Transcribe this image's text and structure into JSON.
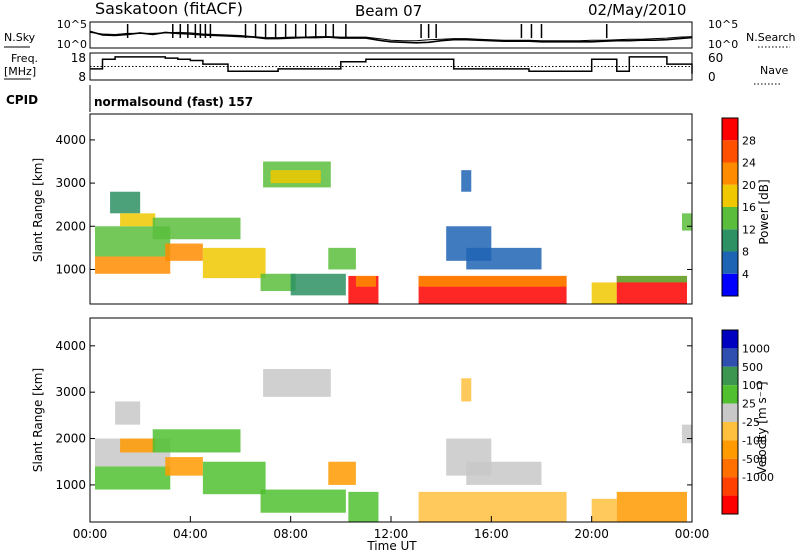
{
  "header": {
    "station": "Saskatoon (fitACF)",
    "beam": "Beam 07",
    "date": "02/May/2010"
  },
  "noise_panel": {
    "left_label": "N.Sky",
    "right_label": "N.Search",
    "left_ticks": [
      "10^5",
      "10^0"
    ],
    "right_ticks": [
      "10^5",
      "10^0"
    ]
  },
  "freq_panel": {
    "left_label_1": "Freq.",
    "left_label_2": "[MHz]",
    "right_label": "Nave",
    "left_ticks": [
      "18",
      "8"
    ],
    "right_ticks": [
      "60",
      "0"
    ]
  },
  "cpid": {
    "label": "CPID",
    "value": "normalsound (fast) 157"
  },
  "colors": {
    "power_scale": [
      "#0000ff",
      "#1e64b4",
      "#2d9164",
      "#5abe3c",
      "#f0c800",
      "#ff8c00",
      "#ff5000",
      "#ff0000"
    ],
    "velocity_scale": [
      "#ff0000",
      "#ff4000",
      "#ff7000",
      "#ff9a00",
      "#ffc040",
      "#c8c8c8",
      "#50c030",
      "#3c9650",
      "#3050b0",
      "#0000c0"
    ]
  },
  "chart_data": [
    {
      "type": "line",
      "name": "noise",
      "x": [
        0,
        0.5,
        1,
        1.5,
        2,
        2.5,
        3,
        3.5,
        4,
        4.5,
        5,
        5.5,
        6,
        6.5,
        7,
        7.5,
        8,
        8.5,
        9,
        9.5,
        10,
        10.5,
        11,
        11.5,
        12,
        12.5,
        13,
        13.5,
        14,
        14.5,
        15,
        15.5,
        16,
        16.5,
        17,
        17.5,
        18,
        18.5,
        19,
        19.5,
        20,
        20.5,
        21,
        21.5,
        22,
        22.5,
        23,
        23.5,
        24
      ],
      "series": [
        {
          "values": [
            3.2,
            2.5,
            2.4,
            2.6,
            2.9,
            2.6,
            3.0,
            2.8,
            2.7,
            2.5,
            2.4,
            2.3,
            2.2,
            2.1,
            1.8,
            1.8,
            1.9,
            2.0,
            2.0,
            2.1,
            1.9,
            1.9,
            1.9,
            1.5,
            1.2,
            1.1,
            1.0,
            1.1,
            1.4,
            1.6,
            1.6,
            1.5,
            1.4,
            1.3,
            1.3,
            1.3,
            1.2,
            1.2,
            1.2,
            1.2,
            1.2,
            1.3,
            1.4,
            1.4,
            1.5,
            1.5,
            1.6,
            1.8,
            2.0
          ]
        },
        {
          "values": [
            3.0,
            2.7,
            2.6,
            2.8,
            2.8,
            2.8,
            2.9,
            3.0,
            2.9,
            2.7,
            2.6,
            2.5,
            2.4,
            2.2,
            2.0,
            2.0,
            2.1,
            2.1,
            2.2,
            2.2,
            2.1,
            2.1,
            2.1,
            1.8,
            1.5,
            1.4,
            1.4,
            1.6,
            1.7,
            1.8,
            1.8,
            1.7,
            1.6,
            1.5,
            1.5,
            1.5,
            1.4,
            1.4,
            1.4,
            1.4,
            1.5,
            1.5,
            1.6,
            1.7,
            1.7,
            1.8,
            1.9,
            2.1,
            2.2
          ]
        }
      ],
      "spikes_x": [
        1.5,
        3.3,
        3.6,
        3.9,
        4.2,
        4.4,
        4.6,
        4.8,
        6.2,
        6.6,
        7.0,
        7.4,
        7.8,
        8.2,
        8.6,
        9.0,
        9.4,
        9.7,
        10.2,
        13.2,
        13.5,
        13.8,
        17.2,
        17.6,
        18.0,
        20.6
      ],
      "ylim": [
        0,
        5
      ]
    },
    {
      "type": "line",
      "name": "frequency",
      "x": [
        0,
        0.5,
        1,
        1.5,
        2,
        2.5,
        3,
        3.5,
        4,
        4.5,
        5,
        5.5,
        6,
        6.5,
        7,
        7.5,
        8,
        8.5,
        9,
        9.5,
        10,
        10.5,
        11,
        11.5,
        12,
        12.5,
        13,
        13.5,
        14,
        14.5,
        15,
        15.5,
        16,
        16.5,
        17,
        17.5,
        18,
        18.5,
        19,
        19.5,
        20,
        20.5,
        21,
        21.5,
        22,
        22.5,
        23,
        23.5,
        24
      ],
      "series": [
        {
          "values": [
            12,
            16,
            17,
            17,
            17,
            17,
            16.5,
            16,
            15.5,
            14,
            14,
            11,
            11,
            11,
            11,
            12,
            12,
            12,
            12,
            12,
            15,
            15,
            16,
            16,
            16,
            16,
            16,
            16,
            16,
            12,
            12,
            12,
            12,
            12,
            12,
            11,
            11,
            11,
            11,
            11,
            16,
            16,
            11,
            17,
            17,
            17,
            14,
            14,
            10
          ]
        },
        {
          "values": [
            13,
            13,
            13,
            13,
            13,
            13,
            13,
            13,
            13,
            13,
            13,
            13,
            13,
            13,
            13,
            13,
            13,
            13,
            13,
            13,
            13,
            13,
            13,
            13,
            13,
            13,
            13,
            13,
            13,
            13,
            13,
            13,
            13,
            13,
            13,
            13,
            13,
            13,
            13,
            13,
            13,
            13,
            13,
            13,
            13,
            13,
            13,
            13,
            13
          ]
        }
      ],
      "ylim": [
        8,
        18
      ]
    },
    {
      "type": "heatmap",
      "name": "power",
      "xlabel": "",
      "ylabel": "Slant Range [km]",
      "xlim": [
        0,
        24
      ],
      "ylim": [
        200,
        4600
      ],
      "yticks": [
        "1000",
        "2000",
        "3000",
        "4000"
      ],
      "colorbar_label": "Power [dB]",
      "colorbar_ticks": [
        "4",
        "8",
        "12",
        "16",
        "20",
        "24",
        "28"
      ],
      "regions": [
        {
          "x0": 0.2,
          "x1": 3.2,
          "y0": 900,
          "y1": 1300,
          "v": 5
        },
        {
          "x0": 0.2,
          "x1": 3.2,
          "y0": 1300,
          "y1": 2000,
          "v": 3
        },
        {
          "x0": 0.8,
          "x1": 2.0,
          "y0": 2300,
          "y1": 2800,
          "v": 2
        },
        {
          "x0": 1.2,
          "x1": 2.6,
          "y0": 2000,
          "y1": 2300,
          "v": 4
        },
        {
          "x0": 2.5,
          "x1": 6.0,
          "y0": 1700,
          "y1": 2200,
          "v": 3
        },
        {
          "x0": 3.0,
          "x1": 4.5,
          "y0": 1200,
          "y1": 1600,
          "v": 5
        },
        {
          "x0": 4.5,
          "x1": 7.0,
          "y0": 800,
          "y1": 1500,
          "v": 4
        },
        {
          "x0": 6.8,
          "x1": 8.2,
          "y0": 500,
          "y1": 900,
          "v": 3
        },
        {
          "x0": 6.9,
          "x1": 9.6,
          "y0": 2900,
          "y1": 3500,
          "v": 3
        },
        {
          "x0": 7.2,
          "x1": 9.2,
          "y0": 3000,
          "y1": 3300,
          "v": 4
        },
        {
          "x0": 8.0,
          "x1": 10.2,
          "y0": 400,
          "y1": 900,
          "v": 2
        },
        {
          "x0": 9.5,
          "x1": 10.6,
          "y0": 1000,
          "y1": 1500,
          "v": 3
        },
        {
          "x0": 10.3,
          "x1": 11.5,
          "y0": 200,
          "y1": 850,
          "v": 7
        },
        {
          "x0": 10.6,
          "x1": 11.4,
          "y0": 600,
          "y1": 850,
          "v": 5
        },
        {
          "x0": 13.1,
          "x1": 19.0,
          "y0": 200,
          "y1": 850,
          "v": 7
        },
        {
          "x0": 13.1,
          "x1": 19.0,
          "y0": 600,
          "y1": 850,
          "v": 5
        },
        {
          "x0": 15.0,
          "x1": 18.0,
          "y0": 1000,
          "y1": 1500,
          "v": 1
        },
        {
          "x0": 14.2,
          "x1": 16.0,
          "y0": 1200,
          "y1": 2000,
          "v": 1
        },
        {
          "x0": 14.8,
          "x1": 15.2,
          "y0": 2800,
          "y1": 3300,
          "v": 1
        },
        {
          "x0": 20.0,
          "x1": 21.0,
          "y0": 200,
          "y1": 700,
          "v": 4
        },
        {
          "x0": 21.0,
          "x1": 23.8,
          "y0": 200,
          "y1": 850,
          "v": 7
        },
        {
          "x0": 21.0,
          "x1": 23.8,
          "y0": 700,
          "y1": 850,
          "v": 3
        },
        {
          "x0": 23.6,
          "x1": 24.0,
          "y0": 1900,
          "y1": 2300,
          "v": 3
        }
      ]
    },
    {
      "type": "heatmap",
      "name": "velocity",
      "xlabel": "Time UT",
      "ylabel": "Slant Range [km]",
      "xlim": [
        0,
        24
      ],
      "ylim": [
        200,
        4600
      ],
      "xticks": [
        "00:00",
        "04:00",
        "08:00",
        "12:00",
        "16:00",
        "20:00",
        "00:00"
      ],
      "yticks": [
        "1000",
        "2000",
        "3000",
        "4000"
      ],
      "colorbar_label": "Velocity [m s⁻¹]",
      "colorbar_ticks": [
        "1000",
        "500",
        "100",
        "25",
        "-25",
        "-100",
        "-500",
        "-1000"
      ],
      "regions": [
        {
          "x0": 0.2,
          "x1": 3.2,
          "y0": 900,
          "y1": 1400,
          "v": 6
        },
        {
          "x0": 0.2,
          "x1": 3.2,
          "y0": 1400,
          "y1": 2000,
          "v": 5
        },
        {
          "x0": 1.0,
          "x1": 2.0,
          "y0": 2300,
          "y1": 2800,
          "v": 5
        },
        {
          "x0": 1.2,
          "x1": 2.6,
          "y0": 1700,
          "y1": 2000,
          "v": 3
        },
        {
          "x0": 2.5,
          "x1": 6.0,
          "y0": 1700,
          "y1": 2200,
          "v": 6
        },
        {
          "x0": 3.0,
          "x1": 4.5,
          "y0": 1200,
          "y1": 1600,
          "v": 3
        },
        {
          "x0": 4.5,
          "x1": 7.0,
          "y0": 800,
          "y1": 1500,
          "v": 6
        },
        {
          "x0": 6.9,
          "x1": 9.6,
          "y0": 2900,
          "y1": 3500,
          "v": 5
        },
        {
          "x0": 6.8,
          "x1": 10.2,
          "y0": 400,
          "y1": 900,
          "v": 6
        },
        {
          "x0": 9.5,
          "x1": 10.6,
          "y0": 1000,
          "y1": 1500,
          "v": 3
        },
        {
          "x0": 10.3,
          "x1": 11.5,
          "y0": 200,
          "y1": 850,
          "v": 6
        },
        {
          "x0": 13.1,
          "x1": 19.0,
          "y0": 200,
          "y1": 850,
          "v": 4
        },
        {
          "x0": 15.0,
          "x1": 18.0,
          "y0": 1000,
          "y1": 1500,
          "v": 5
        },
        {
          "x0": 14.2,
          "x1": 16.0,
          "y0": 1200,
          "y1": 2000,
          "v": 5
        },
        {
          "x0": 14.8,
          "x1": 15.2,
          "y0": 2800,
          "y1": 3300,
          "v": 4
        },
        {
          "x0": 20.0,
          "x1": 21.0,
          "y0": 200,
          "y1": 700,
          "v": 4
        },
        {
          "x0": 21.0,
          "x1": 23.8,
          "y0": 200,
          "y1": 850,
          "v": 3
        },
        {
          "x0": 23.6,
          "x1": 24.0,
          "y0": 1900,
          "y1": 2300,
          "v": 5
        }
      ]
    }
  ]
}
